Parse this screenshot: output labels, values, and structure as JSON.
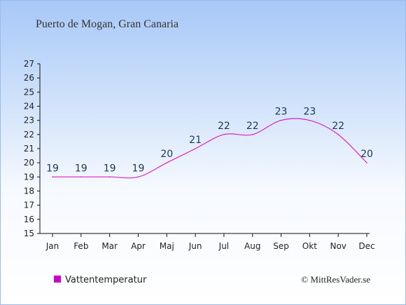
{
  "chart_data": {
    "type": "line",
    "title": "Puerto de Mogan, Gran Canaria",
    "categories": [
      "Jan",
      "Feb",
      "Mar",
      "Apr",
      "Maj",
      "Jun",
      "Jul",
      "Aug",
      "Sep",
      "Okt",
      "Nov",
      "Dec"
    ],
    "series": [
      {
        "name": "Vattentemperatur",
        "values": [
          19,
          19,
          19,
          19,
          20,
          21,
          22,
          22,
          23,
          23,
          22,
          20
        ],
        "data_labels": [
          "19",
          "19",
          "19",
          "19",
          "20",
          "21",
          "22",
          "22",
          "23",
          "23",
          "22",
          "20"
        ],
        "color": "#e020c8"
      }
    ],
    "ylim": [
      15,
      27
    ],
    "y_ticks": [
      "15",
      "16",
      "17",
      "18",
      "19",
      "20",
      "21",
      "22",
      "23",
      "24",
      "25",
      "26",
      "27"
    ],
    "grid": false,
    "legend": "bottom-left"
  },
  "credit": "© MittResVader.se",
  "colors": {
    "line": "#e020c8",
    "legend_swatch": "#cc00cc",
    "axis": "#111111",
    "label": "#1d3557"
  }
}
